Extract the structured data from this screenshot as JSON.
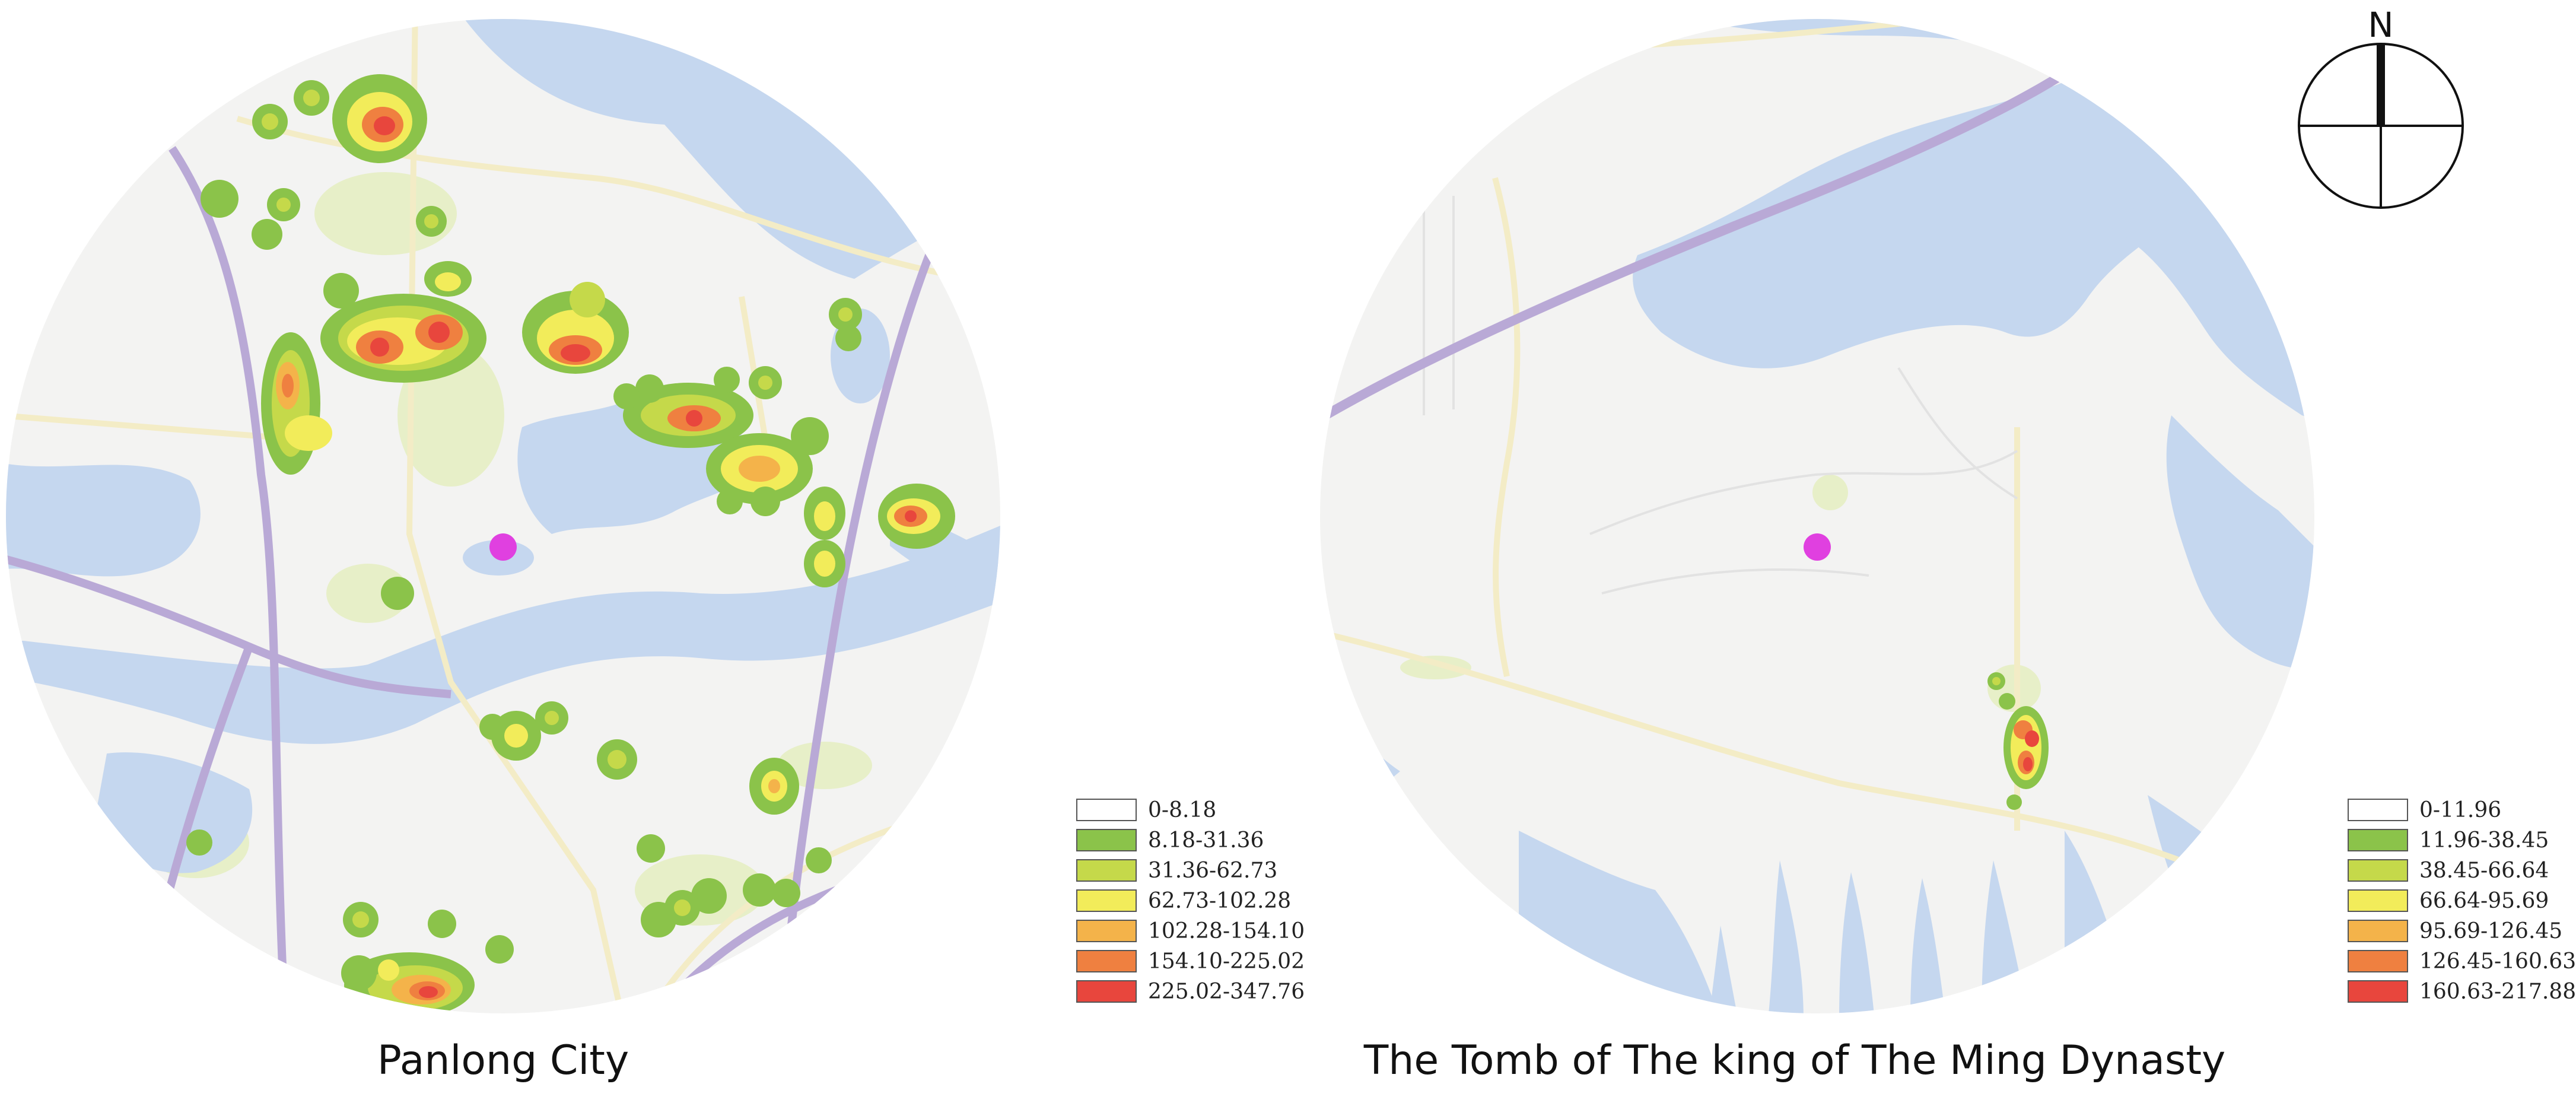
{
  "colors": {
    "land": "#f3f3f2",
    "water": "#c5d7ef",
    "park": "#e7efc8",
    "road_major": "#b9a9d6",
    "road_minor": "#f3ecc6",
    "poi": "#e040e0",
    "heat_green": "#8bc34a",
    "heat_lime": "#c5d94a",
    "heat_yellow": "#f2ec5a",
    "heat_orange": "#f4b34a",
    "heat_dark_orange": "#ef8040",
    "heat_red": "#e8463d"
  },
  "maps": [
    {
      "name": "Panlong City",
      "legend": [
        {
          "label": "0-8.18",
          "color": "#ffffff"
        },
        {
          "label": "8.18-31.36",
          "color": "#8bc34a"
        },
        {
          "label": "31.36-62.73",
          "color": "#c5d94a"
        },
        {
          "label": "62.73-102.28",
          "color": "#f2ec5a"
        },
        {
          "label": "102.28-154.10",
          "color": "#f4b34a"
        },
        {
          "label": "154.10-225.02",
          "color": "#ef8040"
        },
        {
          "label": "225.02-347.76",
          "color": "#e8463d"
        }
      ]
    },
    {
      "name": "The Tomb of The king of The Ming Dynasty",
      "legend": [
        {
          "label": "0-11.96",
          "color": "#ffffff"
        },
        {
          "label": "11.96-38.45",
          "color": "#8bc34a"
        },
        {
          "label": "38.45-66.64",
          "color": "#c5d94a"
        },
        {
          "label": "66.64-95.69",
          "color": "#f2ec5a"
        },
        {
          "label": "95.69-126.45",
          "color": "#f4b34a"
        },
        {
          "label": "126.45-160.63",
          "color": "#ef8040"
        },
        {
          "label": "160.63-217.88",
          "color": "#e8463d"
        }
      ]
    }
  ],
  "compass": {
    "label": "N"
  }
}
